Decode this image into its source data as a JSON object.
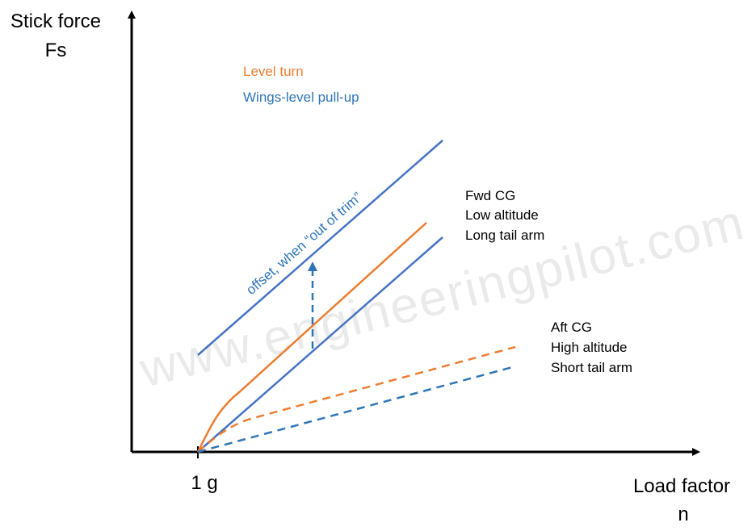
{
  "axes": {
    "y_title_line1": "Stick force",
    "y_title_line2": "Fs",
    "x_title_line1": "Load factor",
    "x_title_line2": "n",
    "x_tick": "1 g"
  },
  "legend": {
    "level_turn": "Level turn",
    "wings_level_pull_up": "Wings-level pull-up"
  },
  "groups": {
    "high_force": [
      "Fwd CG",
      "Low altitude",
      "Long tail arm"
    ],
    "low_force": [
      "Aft CG",
      "High altitude",
      "Short tail arm"
    ]
  },
  "annotation": "offset, when “out of trim”",
  "watermark": "www.engineeringpilot.com",
  "colors": {
    "level_turn": "#ed7d31",
    "pull_up": "#4472c4",
    "dashed_blue": "#2e75b6",
    "annotation_text": "#2e75b6",
    "axis": "#000000"
  }
}
